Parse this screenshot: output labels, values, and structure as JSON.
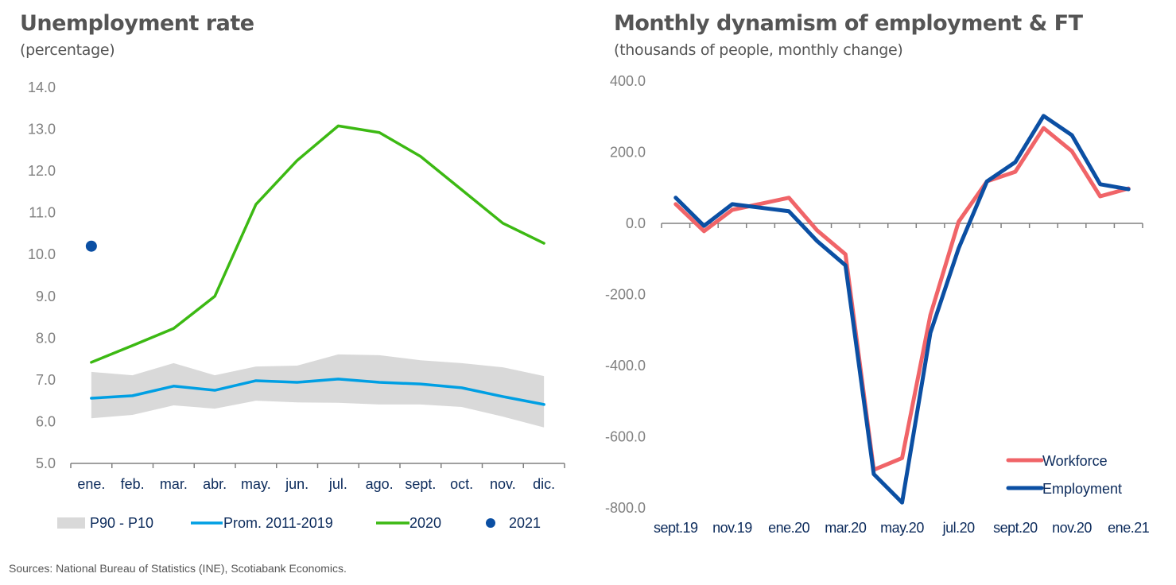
{
  "sources": "Sources: National Bureau of Statistics (INE), Scotiabank Economics.",
  "chart_data": [
    {
      "type": "line",
      "title": "Unemployment rate",
      "subtitle": "(percentage)",
      "xlabel": "",
      "ylabel": "",
      "categories": [
        "ene.",
        "feb.",
        "mar.",
        "abr.",
        "may.",
        "jun.",
        "jul.",
        "ago.",
        "sept.",
        "oct.",
        "nov.",
        "dic."
      ],
      "ylim": [
        5.0,
        14.0
      ],
      "yticks": [
        "5.0",
        "6.0",
        "7.0",
        "8.0",
        "9.0",
        "10.0",
        "11.0",
        "12.0",
        "13.0",
        "14.0"
      ],
      "grid": false,
      "legend_position": "bottom",
      "band": {
        "name": "P90 - P10",
        "color": "#d9d9d9",
        "upper": [
          7.19,
          7.11,
          7.4,
          7.11,
          7.32,
          7.34,
          7.61,
          7.59,
          7.47,
          7.4,
          7.3,
          7.09
        ],
        "lower": [
          6.08,
          6.16,
          6.39,
          6.31,
          6.5,
          6.46,
          6.45,
          6.41,
          6.41,
          6.35,
          6.12,
          5.86
        ]
      },
      "series": [
        {
          "name": "Prom. 2011-2019",
          "color": "#009fe3",
          "values": [
            6.56,
            6.62,
            6.85,
            6.75,
            6.98,
            6.94,
            7.02,
            6.94,
            6.9,
            6.81,
            6.6,
            6.41
          ]
        },
        {
          "name": "2020",
          "color": "#3cb913",
          "values": [
            7.42,
            7.82,
            8.23,
            9.0,
            11.2,
            12.25,
            13.08,
            12.92,
            12.35,
            11.55,
            10.75,
            10.27
          ]
        }
      ],
      "points": [
        {
          "name": "2021",
          "color": "#0b4fa3",
          "category": "ene.",
          "value": 10.2
        }
      ],
      "legend": [
        "P90 - P10",
        "Prom. 2011-2019",
        "2020",
        "2021"
      ]
    },
    {
      "type": "line",
      "title": "Monthly dynamism of employment & FT",
      "subtitle": "(thousands of people, monthly change)",
      "xlabel": "",
      "ylabel": "",
      "x": [
        "sept.19",
        "oct.19",
        "nov.19",
        "dic.19",
        "ene.20",
        "feb.20",
        "mar.20",
        "abr.20",
        "may.20",
        "jun.20",
        "jul.20",
        "ago.20",
        "sept.20",
        "oct.20",
        "nov.20",
        "dic.20",
        "ene.21"
      ],
      "xtick_labels": [
        "sept.19",
        "nov.19",
        "ene.20",
        "mar.20",
        "may.20",
        "jul.20",
        "sept.20",
        "nov.20",
        "ene.21"
      ],
      "ylim": [
        -800,
        400
      ],
      "yticks": [
        "-800.0",
        "-600.0",
        "-400.0",
        "-200.0",
        "0.0",
        "200.0",
        "400.0"
      ],
      "grid": false,
      "legend_position": "bottom-right",
      "series": [
        {
          "name": "Workforce",
          "color": "#f06468",
          "values": [
            54,
            -22,
            38,
            55,
            72,
            -20,
            -87,
            -693,
            -660,
            -258,
            5,
            118,
            145,
            268,
            203,
            76,
            98
          ]
        },
        {
          "name": "Employment",
          "color": "#0b4fa3",
          "values": [
            72,
            -7,
            54,
            44,
            34,
            -50,
            -118,
            -705,
            -785,
            -308,
            -70,
            118,
            172,
            302,
            248,
            110,
            96
          ]
        }
      ]
    }
  ]
}
